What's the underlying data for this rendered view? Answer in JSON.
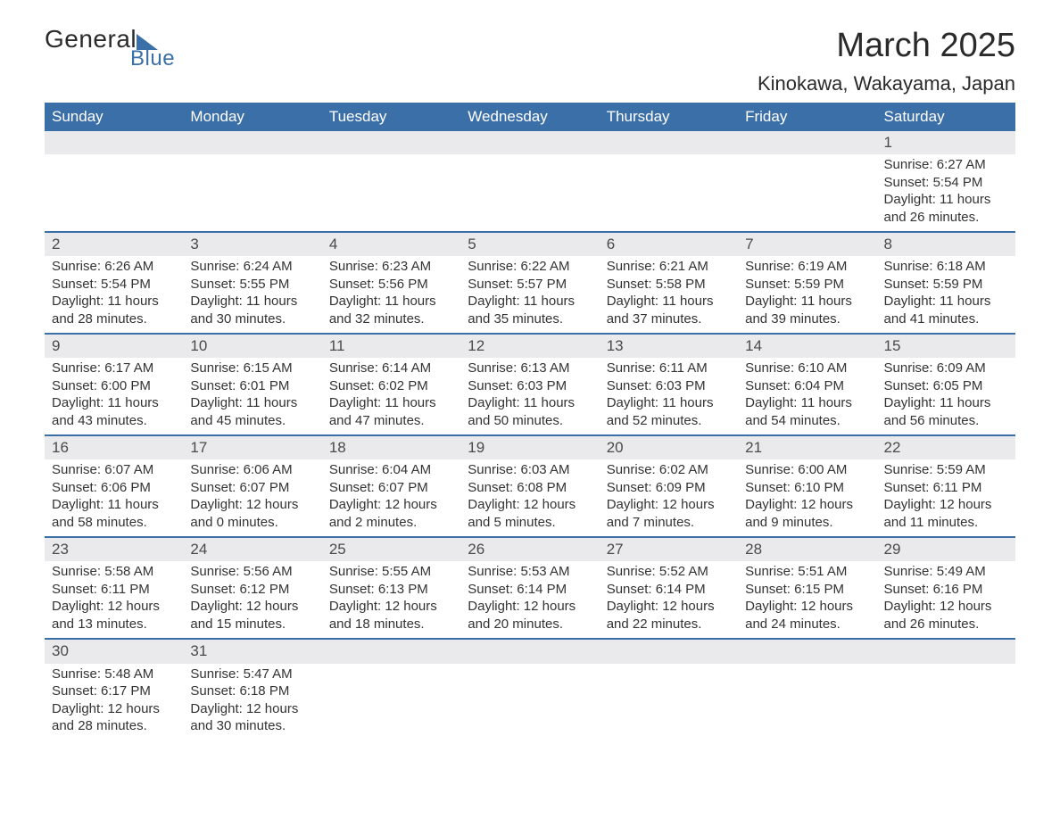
{
  "brand": {
    "general": "General",
    "blue": "Blue"
  },
  "title": "March 2025",
  "location": "Kinokawa, Wakayama, Japan",
  "colors": {
    "header_bg": "#3b6fa8",
    "header_fg": "#ffffff",
    "day_stripe": "#eaeaec",
    "row_divider": "#3b6fa8",
    "text": "#333333",
    "background": "#ffffff"
  },
  "weekdays": [
    "Sunday",
    "Monday",
    "Tuesday",
    "Wednesday",
    "Thursday",
    "Friday",
    "Saturday"
  ],
  "weeks": [
    [
      null,
      null,
      null,
      null,
      null,
      null,
      {
        "d": "1",
        "sr": "6:27 AM",
        "ss": "5:54 PM",
        "dl": "11 hours and 26 minutes."
      }
    ],
    [
      {
        "d": "2",
        "sr": "6:26 AM",
        "ss": "5:54 PM",
        "dl": "11 hours and 28 minutes."
      },
      {
        "d": "3",
        "sr": "6:24 AM",
        "ss": "5:55 PM",
        "dl": "11 hours and 30 minutes."
      },
      {
        "d": "4",
        "sr": "6:23 AM",
        "ss": "5:56 PM",
        "dl": "11 hours and 32 minutes."
      },
      {
        "d": "5",
        "sr": "6:22 AM",
        "ss": "5:57 PM",
        "dl": "11 hours and 35 minutes."
      },
      {
        "d": "6",
        "sr": "6:21 AM",
        "ss": "5:58 PM",
        "dl": "11 hours and 37 minutes."
      },
      {
        "d": "7",
        "sr": "6:19 AM",
        "ss": "5:59 PM",
        "dl": "11 hours and 39 minutes."
      },
      {
        "d": "8",
        "sr": "6:18 AM",
        "ss": "5:59 PM",
        "dl": "11 hours and 41 minutes."
      }
    ],
    [
      {
        "d": "9",
        "sr": "6:17 AM",
        "ss": "6:00 PM",
        "dl": "11 hours and 43 minutes."
      },
      {
        "d": "10",
        "sr": "6:15 AM",
        "ss": "6:01 PM",
        "dl": "11 hours and 45 minutes."
      },
      {
        "d": "11",
        "sr": "6:14 AM",
        "ss": "6:02 PM",
        "dl": "11 hours and 47 minutes."
      },
      {
        "d": "12",
        "sr": "6:13 AM",
        "ss": "6:03 PM",
        "dl": "11 hours and 50 minutes."
      },
      {
        "d": "13",
        "sr": "6:11 AM",
        "ss": "6:03 PM",
        "dl": "11 hours and 52 minutes."
      },
      {
        "d": "14",
        "sr": "6:10 AM",
        "ss": "6:04 PM",
        "dl": "11 hours and 54 minutes."
      },
      {
        "d": "15",
        "sr": "6:09 AM",
        "ss": "6:05 PM",
        "dl": "11 hours and 56 minutes."
      }
    ],
    [
      {
        "d": "16",
        "sr": "6:07 AM",
        "ss": "6:06 PM",
        "dl": "11 hours and 58 minutes."
      },
      {
        "d": "17",
        "sr": "6:06 AM",
        "ss": "6:07 PM",
        "dl": "12 hours and 0 minutes."
      },
      {
        "d": "18",
        "sr": "6:04 AM",
        "ss": "6:07 PM",
        "dl": "12 hours and 2 minutes."
      },
      {
        "d": "19",
        "sr": "6:03 AM",
        "ss": "6:08 PM",
        "dl": "12 hours and 5 minutes."
      },
      {
        "d": "20",
        "sr": "6:02 AM",
        "ss": "6:09 PM",
        "dl": "12 hours and 7 minutes."
      },
      {
        "d": "21",
        "sr": "6:00 AM",
        "ss": "6:10 PM",
        "dl": "12 hours and 9 minutes."
      },
      {
        "d": "22",
        "sr": "5:59 AM",
        "ss": "6:11 PM",
        "dl": "12 hours and 11 minutes."
      }
    ],
    [
      {
        "d": "23",
        "sr": "5:58 AM",
        "ss": "6:11 PM",
        "dl": "12 hours and 13 minutes."
      },
      {
        "d": "24",
        "sr": "5:56 AM",
        "ss": "6:12 PM",
        "dl": "12 hours and 15 minutes."
      },
      {
        "d": "25",
        "sr": "5:55 AM",
        "ss": "6:13 PM",
        "dl": "12 hours and 18 minutes."
      },
      {
        "d": "26",
        "sr": "5:53 AM",
        "ss": "6:14 PM",
        "dl": "12 hours and 20 minutes."
      },
      {
        "d": "27",
        "sr": "5:52 AM",
        "ss": "6:14 PM",
        "dl": "12 hours and 22 minutes."
      },
      {
        "d": "28",
        "sr": "5:51 AM",
        "ss": "6:15 PM",
        "dl": "12 hours and 24 minutes."
      },
      {
        "d": "29",
        "sr": "5:49 AM",
        "ss": "6:16 PM",
        "dl": "12 hours and 26 minutes."
      }
    ],
    [
      {
        "d": "30",
        "sr": "5:48 AM",
        "ss": "6:17 PM",
        "dl": "12 hours and 28 minutes."
      },
      {
        "d": "31",
        "sr": "5:47 AM",
        "ss": "6:18 PM",
        "dl": "12 hours and 30 minutes."
      },
      null,
      null,
      null,
      null,
      null
    ]
  ],
  "labels": {
    "sunrise": "Sunrise: ",
    "sunset": "Sunset: ",
    "daylight": "Daylight: "
  }
}
